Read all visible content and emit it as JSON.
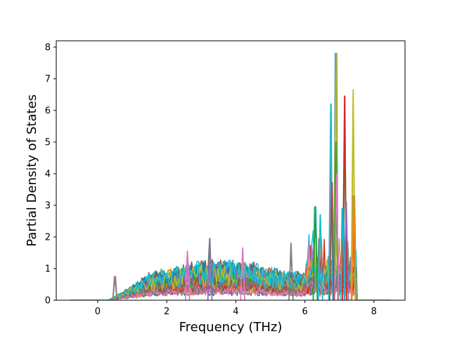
{
  "chart_data": {
    "type": "line",
    "xlabel": "Frequency (THz)",
    "ylabel": "Partial Density of States",
    "xlim": [
      -1.2,
      8.9
    ],
    "ylim": [
      0,
      8.2
    ],
    "x_ticks": [
      0,
      2,
      4,
      6,
      8
    ],
    "y_ticks": [
      0,
      1,
      2,
      3,
      4,
      5,
      6,
      7,
      8
    ],
    "x_tick_labels": [
      "0",
      "2",
      "4",
      "6",
      "8"
    ],
    "y_tick_labels": [
      "0",
      "1",
      "2",
      "3",
      "4",
      "5",
      "6",
      "7",
      "8"
    ],
    "grid": false,
    "legend": "none",
    "x_range": [
      -0.8,
      8.5
    ],
    "band_start": 0.3,
    "band_end": 7.5,
    "colors": [
      "#1f77b4",
      "#ff7f0e",
      "#2ca02c",
      "#d62728",
      "#9467bd",
      "#8c564b",
      "#e377c2",
      "#7f7f7f",
      "#bcbd22",
      "#17becf"
    ],
    "series_count": 40,
    "peaks": [
      {
        "x": 6.9,
        "y": 7.8,
        "color": "#bcbd22"
      },
      {
        "x": 7.4,
        "y": 6.65,
        "color": "#bcbd22"
      },
      {
        "x": 7.15,
        "y": 6.45,
        "color": "#d62728"
      },
      {
        "x": 6.75,
        "y": 6.2,
        "color": "#17becf"
      },
      {
        "x": 6.9,
        "y": 5.0,
        "color": "#2ca02c"
      },
      {
        "x": 6.92,
        "y": 4.0,
        "color": "#e377c2"
      },
      {
        "x": 6.78,
        "y": 3.72,
        "color": "#8c564b"
      },
      {
        "x": 7.42,
        "y": 3.3,
        "color": "#ff7f0e"
      },
      {
        "x": 7.2,
        "y": 3.1,
        "color": "#9467bd"
      },
      {
        "x": 6.3,
        "y": 2.95,
        "color": "#2ca02c"
      },
      {
        "x": 7.1,
        "y": 2.9,
        "color": "#17becf"
      },
      {
        "x": 6.45,
        "y": 2.7,
        "color": "#17becf"
      },
      {
        "x": 3.25,
        "y": 1.95,
        "color": "#9467bd"
      },
      {
        "x": 5.6,
        "y": 1.8,
        "color": "#7f7f7f"
      },
      {
        "x": 4.2,
        "y": 1.65,
        "color": "#e377c2"
      },
      {
        "x": 2.6,
        "y": 1.55,
        "color": "#e377c2"
      },
      {
        "x": 0.5,
        "y": 0.75,
        "color": "#7f7f7f"
      }
    ]
  }
}
